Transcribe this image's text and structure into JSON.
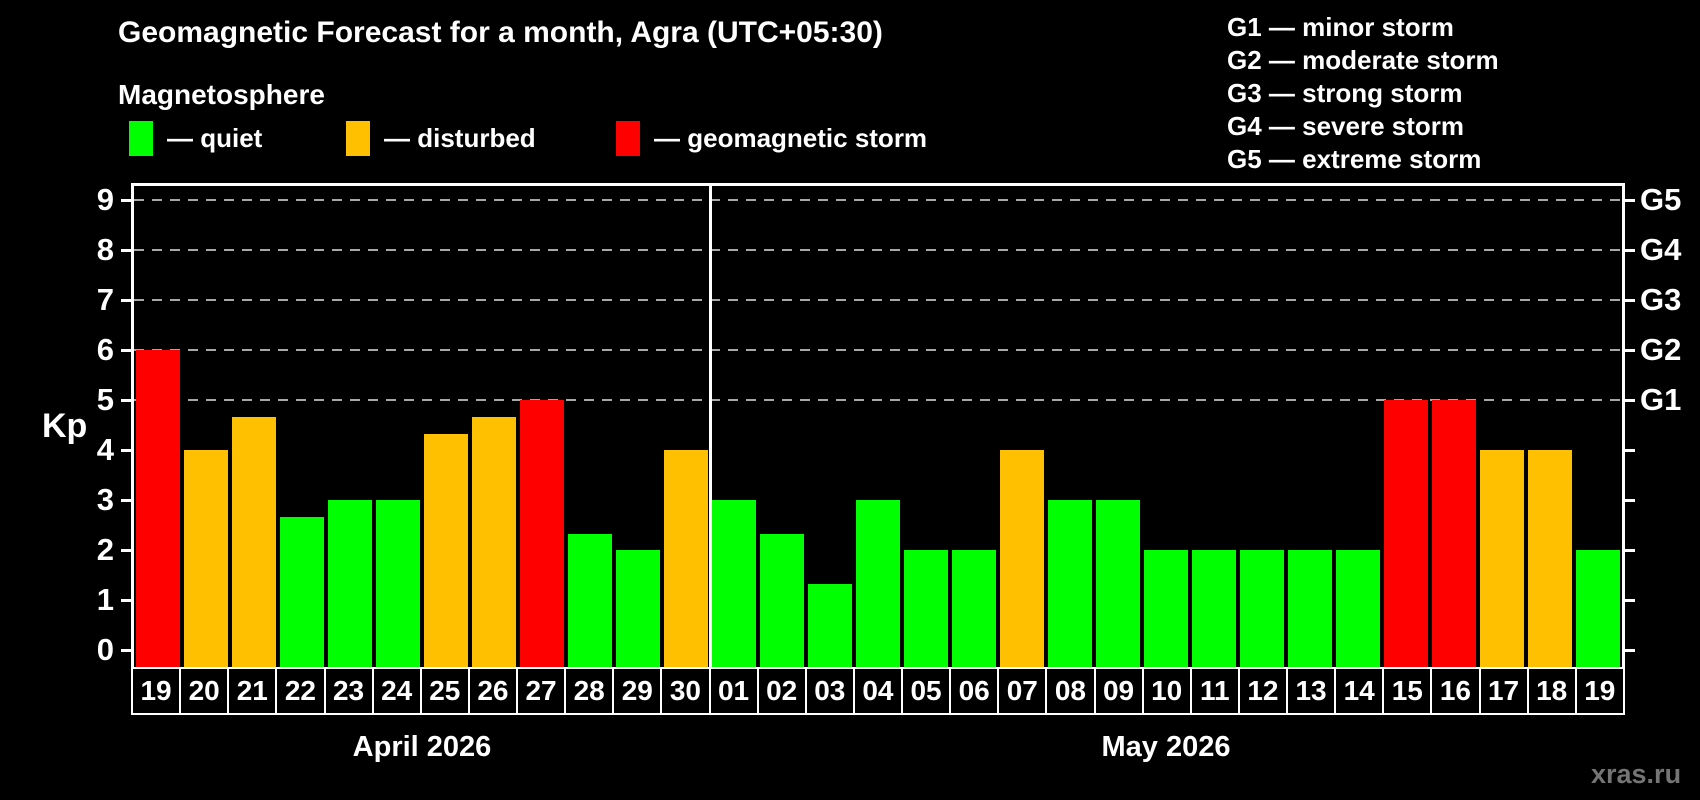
{
  "header": {
    "title": "Geomagnetic Forecast for a month, Agra (UTC+05:30)",
    "subtitle": "Magnetosphere"
  },
  "legend": {
    "items": [
      {
        "key": "quiet",
        "label": "— quiet",
        "color": "#00ff00"
      },
      {
        "key": "disturbed",
        "label": "— disturbed",
        "color": "#ffc000"
      },
      {
        "key": "storm",
        "label": "— geomagnetic storm",
        "color": "#ff0000"
      }
    ]
  },
  "g_legend": [
    "G1 — minor storm",
    "G2 — moderate storm",
    "G3 — strong storm",
    "G4 — severe storm",
    "G5 — extreme storm"
  ],
  "watermark": "xras.ru",
  "chart_data": {
    "type": "bar",
    "title": "Geomagnetic Forecast for a month, Agra (UTC+05:30)",
    "subtitle": "Magnetosphere",
    "ylabel": "Kp",
    "ylim": [
      0,
      9.3
    ],
    "y_ticks": [
      0,
      1,
      2,
      3,
      4,
      5,
      6,
      7,
      8,
      9
    ],
    "gridlines_at": [
      5,
      6,
      7,
      8,
      9
    ],
    "grid_on": true,
    "right_axis": [
      {
        "label": "G5",
        "value": 9
      },
      {
        "label": "G4",
        "value": 8
      },
      {
        "label": "G3",
        "value": 7
      },
      {
        "label": "G2",
        "value": 6
      },
      {
        "label": "G1",
        "value": 5
      }
    ],
    "palette": {
      "quiet": "#00ff00",
      "disturbed": "#ffc000",
      "storm": "#ff0000"
    },
    "colors": {
      "background": "#000000",
      "axis": "#ffffff",
      "grid": "#a8a8a8",
      "watermark": "#757575"
    },
    "categories": [
      "19",
      "20",
      "21",
      "22",
      "23",
      "24",
      "25",
      "26",
      "27",
      "28",
      "29",
      "30",
      "01",
      "02",
      "03",
      "04",
      "05",
      "06",
      "07",
      "08",
      "09",
      "10",
      "11",
      "12",
      "13",
      "14",
      "15",
      "16",
      "17",
      "18",
      "19"
    ],
    "values": [
      6,
      4,
      4.67,
      2.67,
      3,
      3,
      4.33,
      4.67,
      5,
      2.33,
      2,
      4,
      3,
      2.33,
      1.33,
      3,
      2,
      2,
      4,
      3,
      3,
      2,
      2,
      2,
      2,
      2,
      5,
      5,
      4,
      4,
      2
    ],
    "statuses": [
      "storm",
      "disturbed",
      "disturbed",
      "quiet",
      "quiet",
      "quiet",
      "disturbed",
      "disturbed",
      "storm",
      "quiet",
      "quiet",
      "disturbed",
      "quiet",
      "quiet",
      "quiet",
      "quiet",
      "quiet",
      "quiet",
      "disturbed",
      "quiet",
      "quiet",
      "quiet",
      "quiet",
      "quiet",
      "quiet",
      "quiet",
      "storm",
      "storm",
      "disturbed",
      "disturbed",
      "quiet"
    ],
    "divider_after_index": 11,
    "months": [
      {
        "label": "April 2026",
        "days": 12
      },
      {
        "label": "May 2026",
        "days": 19
      }
    ]
  }
}
